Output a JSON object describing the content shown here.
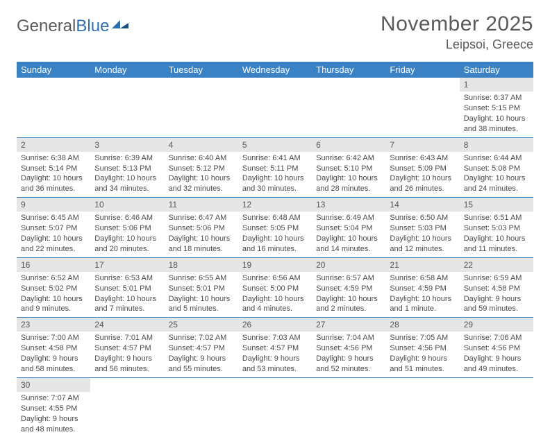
{
  "brand": {
    "word1": "General",
    "word2": "Blue"
  },
  "title": "November 2025",
  "location": "Leipsoi, Greece",
  "colors": {
    "header_bg": "#3a82c4",
    "header_text": "#ffffff",
    "daynum_bg": "#e6e6e6",
    "row_border": "#3a82c4",
    "title_color": "#5a5a5a",
    "logo_gray": "#5a5a5a",
    "logo_blue": "#2f6fb0"
  },
  "dayHeaders": [
    "Sunday",
    "Monday",
    "Tuesday",
    "Wednesday",
    "Thursday",
    "Friday",
    "Saturday"
  ],
  "weeks": [
    [
      {
        "n": "",
        "l1": "",
        "l2": "",
        "l3": "",
        "l4": ""
      },
      {
        "n": "",
        "l1": "",
        "l2": "",
        "l3": "",
        "l4": ""
      },
      {
        "n": "",
        "l1": "",
        "l2": "",
        "l3": "",
        "l4": ""
      },
      {
        "n": "",
        "l1": "",
        "l2": "",
        "l3": "",
        "l4": ""
      },
      {
        "n": "",
        "l1": "",
        "l2": "",
        "l3": "",
        "l4": ""
      },
      {
        "n": "",
        "l1": "",
        "l2": "",
        "l3": "",
        "l4": ""
      },
      {
        "n": "1",
        "l1": "Sunrise: 6:37 AM",
        "l2": "Sunset: 5:15 PM",
        "l3": "Daylight: 10 hours",
        "l4": "and 38 minutes."
      }
    ],
    [
      {
        "n": "2",
        "l1": "Sunrise: 6:38 AM",
        "l2": "Sunset: 5:14 PM",
        "l3": "Daylight: 10 hours",
        "l4": "and 36 minutes."
      },
      {
        "n": "3",
        "l1": "Sunrise: 6:39 AM",
        "l2": "Sunset: 5:13 PM",
        "l3": "Daylight: 10 hours",
        "l4": "and 34 minutes."
      },
      {
        "n": "4",
        "l1": "Sunrise: 6:40 AM",
        "l2": "Sunset: 5:12 PM",
        "l3": "Daylight: 10 hours",
        "l4": "and 32 minutes."
      },
      {
        "n": "5",
        "l1": "Sunrise: 6:41 AM",
        "l2": "Sunset: 5:11 PM",
        "l3": "Daylight: 10 hours",
        "l4": "and 30 minutes."
      },
      {
        "n": "6",
        "l1": "Sunrise: 6:42 AM",
        "l2": "Sunset: 5:10 PM",
        "l3": "Daylight: 10 hours",
        "l4": "and 28 minutes."
      },
      {
        "n": "7",
        "l1": "Sunrise: 6:43 AM",
        "l2": "Sunset: 5:09 PM",
        "l3": "Daylight: 10 hours",
        "l4": "and 26 minutes."
      },
      {
        "n": "8",
        "l1": "Sunrise: 6:44 AM",
        "l2": "Sunset: 5:08 PM",
        "l3": "Daylight: 10 hours",
        "l4": "and 24 minutes."
      }
    ],
    [
      {
        "n": "9",
        "l1": "Sunrise: 6:45 AM",
        "l2": "Sunset: 5:07 PM",
        "l3": "Daylight: 10 hours",
        "l4": "and 22 minutes."
      },
      {
        "n": "10",
        "l1": "Sunrise: 6:46 AM",
        "l2": "Sunset: 5:06 PM",
        "l3": "Daylight: 10 hours",
        "l4": "and 20 minutes."
      },
      {
        "n": "11",
        "l1": "Sunrise: 6:47 AM",
        "l2": "Sunset: 5:06 PM",
        "l3": "Daylight: 10 hours",
        "l4": "and 18 minutes."
      },
      {
        "n": "12",
        "l1": "Sunrise: 6:48 AM",
        "l2": "Sunset: 5:05 PM",
        "l3": "Daylight: 10 hours",
        "l4": "and 16 minutes."
      },
      {
        "n": "13",
        "l1": "Sunrise: 6:49 AM",
        "l2": "Sunset: 5:04 PM",
        "l3": "Daylight: 10 hours",
        "l4": "and 14 minutes."
      },
      {
        "n": "14",
        "l1": "Sunrise: 6:50 AM",
        "l2": "Sunset: 5:03 PM",
        "l3": "Daylight: 10 hours",
        "l4": "and 12 minutes."
      },
      {
        "n": "15",
        "l1": "Sunrise: 6:51 AM",
        "l2": "Sunset: 5:03 PM",
        "l3": "Daylight: 10 hours",
        "l4": "and 11 minutes."
      }
    ],
    [
      {
        "n": "16",
        "l1": "Sunrise: 6:52 AM",
        "l2": "Sunset: 5:02 PM",
        "l3": "Daylight: 10 hours",
        "l4": "and 9 minutes."
      },
      {
        "n": "17",
        "l1": "Sunrise: 6:53 AM",
        "l2": "Sunset: 5:01 PM",
        "l3": "Daylight: 10 hours",
        "l4": "and 7 minutes."
      },
      {
        "n": "18",
        "l1": "Sunrise: 6:55 AM",
        "l2": "Sunset: 5:01 PM",
        "l3": "Daylight: 10 hours",
        "l4": "and 5 minutes."
      },
      {
        "n": "19",
        "l1": "Sunrise: 6:56 AM",
        "l2": "Sunset: 5:00 PM",
        "l3": "Daylight: 10 hours",
        "l4": "and 4 minutes."
      },
      {
        "n": "20",
        "l1": "Sunrise: 6:57 AM",
        "l2": "Sunset: 4:59 PM",
        "l3": "Daylight: 10 hours",
        "l4": "and 2 minutes."
      },
      {
        "n": "21",
        "l1": "Sunrise: 6:58 AM",
        "l2": "Sunset: 4:59 PM",
        "l3": "Daylight: 10 hours",
        "l4": "and 1 minute."
      },
      {
        "n": "22",
        "l1": "Sunrise: 6:59 AM",
        "l2": "Sunset: 4:58 PM",
        "l3": "Daylight: 9 hours",
        "l4": "and 59 minutes."
      }
    ],
    [
      {
        "n": "23",
        "l1": "Sunrise: 7:00 AM",
        "l2": "Sunset: 4:58 PM",
        "l3": "Daylight: 9 hours",
        "l4": "and 58 minutes."
      },
      {
        "n": "24",
        "l1": "Sunrise: 7:01 AM",
        "l2": "Sunset: 4:57 PM",
        "l3": "Daylight: 9 hours",
        "l4": "and 56 minutes."
      },
      {
        "n": "25",
        "l1": "Sunrise: 7:02 AM",
        "l2": "Sunset: 4:57 PM",
        "l3": "Daylight: 9 hours",
        "l4": "and 55 minutes."
      },
      {
        "n": "26",
        "l1": "Sunrise: 7:03 AM",
        "l2": "Sunset: 4:57 PM",
        "l3": "Daylight: 9 hours",
        "l4": "and 53 minutes."
      },
      {
        "n": "27",
        "l1": "Sunrise: 7:04 AM",
        "l2": "Sunset: 4:56 PM",
        "l3": "Daylight: 9 hours",
        "l4": "and 52 minutes."
      },
      {
        "n": "28",
        "l1": "Sunrise: 7:05 AM",
        "l2": "Sunset: 4:56 PM",
        "l3": "Daylight: 9 hours",
        "l4": "and 51 minutes."
      },
      {
        "n": "29",
        "l1": "Sunrise: 7:06 AM",
        "l2": "Sunset: 4:56 PM",
        "l3": "Daylight: 9 hours",
        "l4": "and 49 minutes."
      }
    ],
    [
      {
        "n": "30",
        "l1": "Sunrise: 7:07 AM",
        "l2": "Sunset: 4:55 PM",
        "l3": "Daylight: 9 hours",
        "l4": "and 48 minutes."
      },
      {
        "n": "",
        "l1": "",
        "l2": "",
        "l3": "",
        "l4": ""
      },
      {
        "n": "",
        "l1": "",
        "l2": "",
        "l3": "",
        "l4": ""
      },
      {
        "n": "",
        "l1": "",
        "l2": "",
        "l3": "",
        "l4": ""
      },
      {
        "n": "",
        "l1": "",
        "l2": "",
        "l3": "",
        "l4": ""
      },
      {
        "n": "",
        "l1": "",
        "l2": "",
        "l3": "",
        "l4": ""
      },
      {
        "n": "",
        "l1": "",
        "l2": "",
        "l3": "",
        "l4": ""
      }
    ]
  ]
}
